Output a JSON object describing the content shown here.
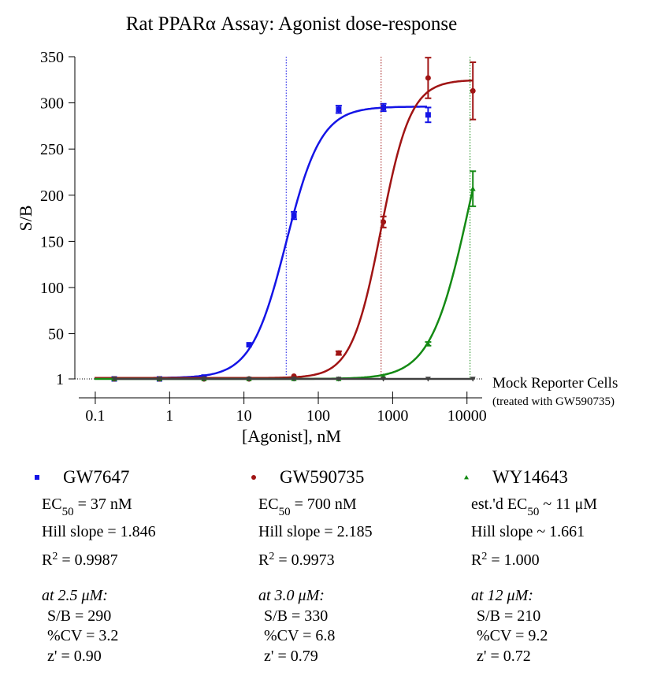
{
  "chart_data": {
    "type": "dose-response",
    "title": "Rat PPARα Assay: Agonist dose-response",
    "x_label": "[Agonist], nM",
    "y_label": "S/B",
    "x_scale": "log",
    "xlim": [
      0.06,
      16000
    ],
    "xticks": [
      0.1,
      1,
      10,
      100,
      1000,
      10000
    ],
    "ylim": [
      1,
      350
    ],
    "yticks": [
      1,
      50,
      100,
      150,
      200,
      250,
      300,
      350
    ],
    "x": [
      0.18,
      0.73,
      2.9,
      11.7,
      47,
      188,
      750,
      3000,
      12000
    ],
    "series": [
      {
        "name": "GW7647",
        "color": "#1414e6",
        "marker": "square",
        "values": [
          1,
          1,
          3,
          38,
          178,
          293,
          295,
          287,
          null
        ],
        "errors": [
          null,
          null,
          null,
          null,
          4,
          4,
          4,
          8,
          null
        ],
        "fit": {
          "bottom": 2,
          "top": 296,
          "ec50": 37,
          "hill": 1.846
        }
      },
      {
        "name": "GW590735",
        "color": "#a01414",
        "marker": "circle",
        "values": [
          1,
          1,
          1,
          1,
          4,
          29,
          171,
          327,
          313
        ],
        "errors": [
          null,
          null,
          null,
          null,
          null,
          2,
          6,
          22,
          31
        ],
        "fit": {
          "bottom": 2,
          "top": 325,
          "ec50": 700,
          "hill": 2.185
        }
      },
      {
        "name": "WY14643",
        "color": "#148a14",
        "marker": "triangle",
        "values": [
          1,
          1,
          1,
          1,
          1,
          1,
          4,
          39,
          207
        ],
        "errors": [
          null,
          null,
          null,
          null,
          null,
          null,
          null,
          2,
          19
        ],
        "fit": {
          "bottom": 1,
          "top": 385,
          "ec50": 11000,
          "hill": 1.661
        }
      },
      {
        "name": "Mock Reporter Cells",
        "note": "(treated with GW590735)",
        "color": "#404040",
        "marker": "triangle-down",
        "values": [
          1,
          1,
          1,
          1,
          1,
          1,
          1,
          1,
          1
        ]
      }
    ],
    "stats": [
      {
        "ec50": [
          "EC",
          "50",
          " = 37 nM"
        ],
        "hill": "Hill slope = 1.846",
        "r2": [
          "R",
          "2",
          " = 0.9987"
        ],
        "conc": "at 2.5 μM:",
        "sb": "S/B = 290",
        "cv": "%CV = 3.2",
        "z": "z' = 0.90"
      },
      {
        "ec50": [
          "EC",
          "50",
          " = 700 nM"
        ],
        "hill": "Hill slope = 2.185",
        "r2": [
          "R",
          "2",
          " = 0.9973"
        ],
        "conc": "at 3.0 μM:",
        "sb": "S/B = 330",
        "cv": "%CV = 6.8",
        "z": "z' = 0.79"
      },
      {
        "ec50": [
          "est.'d EC",
          "50",
          " ~ 11 μM"
        ],
        "hill": "Hill slope ~ 1.661",
        "r2": [
          "R",
          "2",
          " = 1.000"
        ],
        "conc": "at 12 μM:",
        "sb": "S/B = 210",
        "cv": "%CV = 9.2",
        "z": "z' = 0.72"
      }
    ]
  }
}
